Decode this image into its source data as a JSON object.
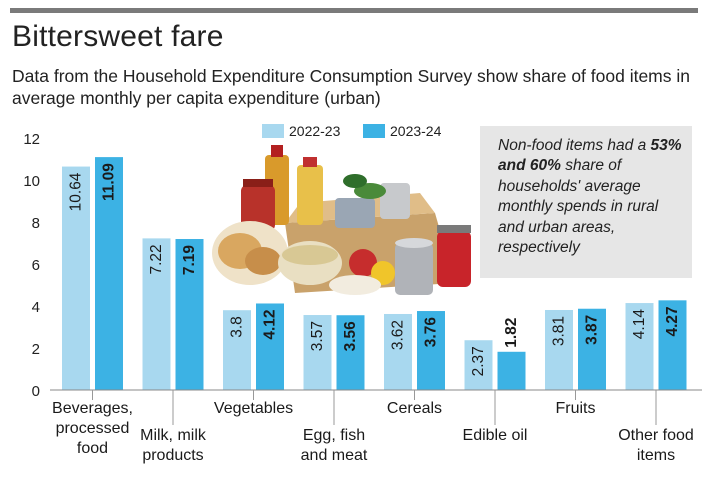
{
  "header": {
    "title": "Bittersweet fare",
    "subtitle": "Data from the Household Expenditure Consumption Survey show share of food items in average monthly per capita expenditure (urban)"
  },
  "note": {
    "before": "Non-food items had a ",
    "bold": "53% and 60%",
    "after": " share of households' average monthly spends in rural and urban areas, respectively"
  },
  "colors": {
    "series_2022": "#a8d8ef",
    "series_2023": "#3cb2e4",
    "note_background": "#e6e6e6",
    "rule": "#7a7a7a"
  },
  "chart_data": {
    "type": "bar",
    "title": "Bittersweet fare",
    "subtitle": "Data from the Household Expenditure Consumption Survey show share of food items in average monthly per capita expenditure (urban)",
    "xlabel": "",
    "ylabel": "",
    "ylim": [
      0,
      12
    ],
    "yticks": [
      0,
      2,
      4,
      6,
      8,
      10,
      12
    ],
    "grid": false,
    "legend_position": "top-center",
    "categories": [
      [
        "Beverages,",
        "processed",
        "food"
      ],
      [
        "Milk, milk",
        "products"
      ],
      [
        "Vegetables"
      ],
      [
        "Egg, fish",
        "and meat"
      ],
      [
        "Cereals"
      ],
      [
        "Edible oil"
      ],
      [
        "Fruits"
      ],
      [
        "Other food",
        "items"
      ]
    ],
    "series": [
      {
        "name": "2022-23",
        "values": [
          10.64,
          7.22,
          3.8,
          3.57,
          3.62,
          2.37,
          3.81,
          4.14
        ]
      },
      {
        "name": "2023-24",
        "values": [
          11.09,
          7.19,
          4.12,
          3.56,
          3.76,
          1.82,
          3.87,
          4.27
        ]
      }
    ]
  }
}
